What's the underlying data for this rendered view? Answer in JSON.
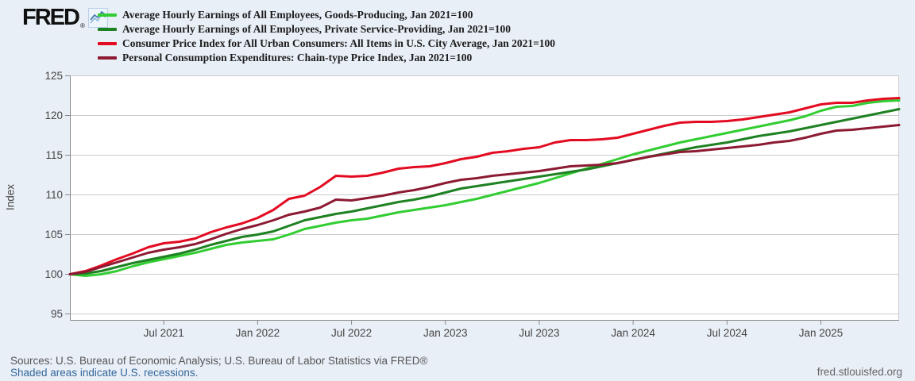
{
  "brand": {
    "logo_text": "FRED",
    "registered_mark": "®"
  },
  "chart_data": {
    "type": "line",
    "title": "",
    "ylabel": "Index",
    "x_start": "Jan 2021",
    "x_end": "Jun 2025",
    "x_unit": "month",
    "ylim": [
      95,
      125
    ],
    "grid": true,
    "legend_position": "top",
    "y_ticks": [
      125,
      120,
      115,
      110,
      105,
      100,
      95
    ],
    "x_ticks": [
      {
        "label": "Jul 2021",
        "month": 6
      },
      {
        "label": "Jan 2022",
        "month": 12
      },
      {
        "label": "Jul 2022",
        "month": 18
      },
      {
        "label": "Jan 2023",
        "month": 24
      },
      {
        "label": "Jul 2023",
        "month": 30
      },
      {
        "label": "Jan 2024",
        "month": 36
      },
      {
        "label": "Jul 2024",
        "month": 42
      },
      {
        "label": "Jan 2025",
        "month": 48
      }
    ],
    "theme": {
      "background": "#e9eff7",
      "plot_background": "#ffffff",
      "gridline": "#cccccc",
      "axis": "#888888",
      "tick_text": "#444444"
    },
    "series": [
      {
        "name": "Average Hourly Earnings of All Employees, Goods-Producing, Jan 2021=100",
        "color": "#32cd32",
        "values": [
          100.0,
          99.8,
          100.0,
          100.4,
          101.0,
          101.5,
          101.9,
          102.3,
          102.7,
          103.2,
          103.7,
          104.0,
          104.2,
          104.4,
          105.0,
          105.7,
          106.1,
          106.5,
          106.8,
          107.0,
          107.4,
          107.8,
          108.1,
          108.4,
          108.7,
          109.1,
          109.5,
          110.0,
          110.5,
          111.0,
          111.5,
          112.1,
          112.7,
          113.3,
          113.9,
          114.5,
          115.1,
          115.6,
          116.1,
          116.6,
          117.0,
          117.4,
          117.8,
          118.2,
          118.6,
          119.0,
          119.4,
          119.9,
          120.6,
          121.1,
          121.2,
          121.6,
          121.8,
          121.9
        ]
      },
      {
        "name": "Average Hourly Earnings of All Employees, Private Service-Providing, Jan 2021=100",
        "color": "#1e8122",
        "values": [
          100.0,
          100.1,
          100.4,
          100.9,
          101.4,
          101.8,
          102.2,
          102.6,
          103.1,
          103.7,
          104.2,
          104.7,
          105.0,
          105.4,
          106.1,
          106.8,
          107.2,
          107.6,
          107.9,
          108.3,
          108.7,
          109.1,
          109.4,
          109.8,
          110.3,
          110.8,
          111.1,
          111.4,
          111.7,
          112.0,
          112.3,
          112.6,
          112.9,
          113.2,
          113.6,
          114.0,
          114.4,
          114.8,
          115.2,
          115.6,
          116.0,
          116.3,
          116.6,
          117.0,
          117.4,
          117.7,
          118.0,
          118.4,
          118.8,
          119.2,
          119.6,
          120.0,
          120.4,
          120.8
        ]
      },
      {
        "name": "Consumer Price Index for All Urban Consumers: All Items in U.S. City Average, Jan 2021=100",
        "color": "#e30b21",
        "values": [
          100.0,
          100.4,
          101.1,
          101.9,
          102.6,
          103.4,
          103.9,
          104.1,
          104.5,
          105.3,
          105.9,
          106.4,
          107.1,
          108.1,
          109.5,
          109.9,
          111.0,
          112.4,
          112.3,
          112.4,
          112.8,
          113.3,
          113.5,
          113.6,
          114.0,
          114.5,
          114.8,
          115.3,
          115.5,
          115.8,
          116.0,
          116.6,
          116.9,
          116.9,
          117.0,
          117.2,
          117.7,
          118.2,
          118.7,
          119.1,
          119.2,
          119.2,
          119.3,
          119.5,
          119.8,
          120.1,
          120.4,
          120.9,
          121.4,
          121.6,
          121.6,
          121.9,
          122.1,
          122.2
        ]
      },
      {
        "name": "Personal Consumption Expenditures: Chain-type Price Index, Jan 2021=100",
        "color": "#8c1a33",
        "values": [
          100.0,
          100.3,
          100.9,
          101.5,
          102.1,
          102.7,
          103.1,
          103.4,
          103.8,
          104.4,
          105.1,
          105.7,
          106.2,
          106.8,
          107.5,
          107.9,
          108.4,
          109.4,
          109.3,
          109.6,
          109.9,
          110.3,
          110.6,
          111.0,
          111.5,
          111.9,
          112.1,
          112.4,
          112.6,
          112.8,
          113.0,
          113.3,
          113.6,
          113.7,
          113.8,
          114.0,
          114.4,
          114.8,
          115.1,
          115.4,
          115.5,
          115.7,
          115.9,
          116.1,
          116.3,
          116.6,
          116.8,
          117.2,
          117.7,
          118.1,
          118.2,
          118.4,
          118.6,
          118.8
        ]
      }
    ]
  },
  "footer": {
    "sources": "Sources: U.S. Bureau of Economic Analysis; U.S. Bureau of Labor Statistics via FRED®",
    "recessions_note": "Shaded areas indicate U.S. recessions.",
    "site": "fred.stlouisfed.org"
  }
}
